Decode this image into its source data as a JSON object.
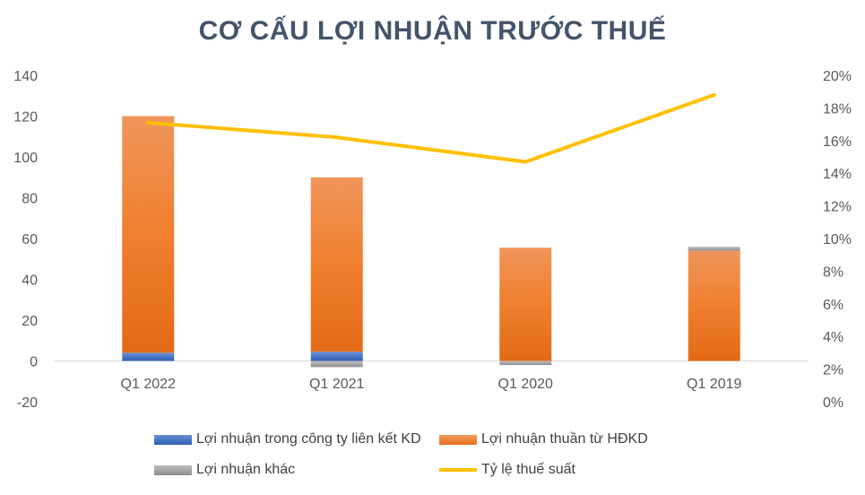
{
  "chart_data": {
    "type": "bar",
    "title": "CƠ CẤU LỢI NHUẬN TRƯỚC THUẾ",
    "categories": [
      "Q1 2022",
      "Q1 2021",
      "Q1 2020",
      "Q1 2019"
    ],
    "series": [
      {
        "name": "Lợi nhuận trong công ty liên kết KD",
        "type": "bar",
        "axis": "left",
        "color": "#4472C4",
        "values": [
          4,
          4.5,
          0,
          0
        ]
      },
      {
        "name": "Lợi nhuận thuần từ HĐKD",
        "type": "bar",
        "axis": "left",
        "color": "#ED7D31",
        "values": [
          116,
          85.5,
          55.5,
          54
        ]
      },
      {
        "name": "Lợi nhuận khác",
        "type": "bar",
        "axis": "left",
        "color": "#A5A5A5",
        "values": [
          0,
          -3,
          -2,
          2
        ]
      },
      {
        "name": "Tỷ lệ thuế suất",
        "type": "line",
        "axis": "right",
        "color": "#FFC000",
        "values": [
          17.1,
          16.2,
          14.7,
          18.8
        ]
      }
    ],
    "ylim": [
      -20,
      140
    ],
    "yticks": [
      "140",
      "120",
      "100",
      "80",
      "60",
      "40",
      "20",
      "0",
      "-20"
    ],
    "y2lim": [
      0,
      20
    ],
    "y2ticks": [
      "20%",
      "18%",
      "16%",
      "14%",
      "12%",
      "10%",
      "8%",
      "6%",
      "4%",
      "2%",
      "0%"
    ],
    "legend_position": "bottom",
    "grid": false
  }
}
